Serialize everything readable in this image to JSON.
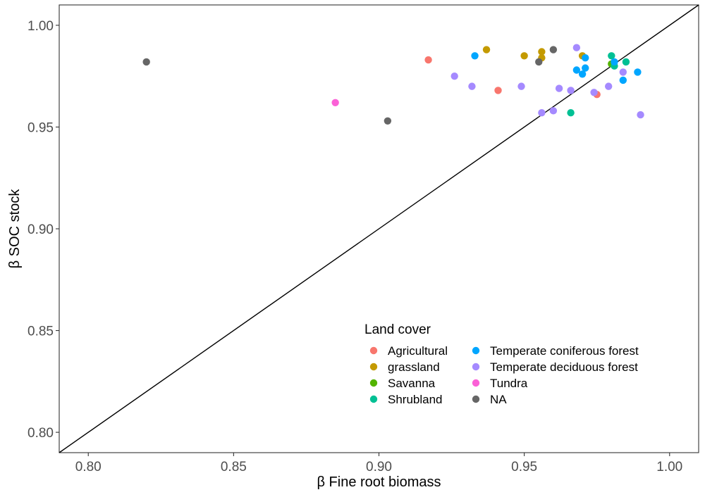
{
  "chart_data": {
    "type": "scatter",
    "xlabel": "β Fine root biomass",
    "ylabel": "β SOC stock",
    "xlim": [
      0.79,
      1.01
    ],
    "ylim": [
      0.79,
      1.01
    ],
    "xticks": [
      "0.80",
      "0.85",
      "0.90",
      "0.95",
      "1.00"
    ],
    "yticks": [
      "0.80",
      "0.85",
      "0.90",
      "0.95",
      "1.00"
    ],
    "xtick_values": [
      0.8,
      0.85,
      0.9,
      0.95,
      1.0
    ],
    "ytick_values": [
      0.8,
      0.85,
      0.9,
      0.95,
      1.0
    ],
    "grid": false,
    "reference_line": "y = x",
    "legend": {
      "title": "Land cover",
      "placement": "bottom-right inside",
      "columns": 2
    },
    "series": [
      {
        "name": "Agricultural",
        "color": "#F8766D",
        "points": [
          [
            0.917,
            0.983
          ],
          [
            0.941,
            0.968
          ],
          [
            0.975,
            0.966
          ]
        ]
      },
      {
        "name": "grassland",
        "color": "#C49A00",
        "points": [
          [
            0.937,
            0.988
          ],
          [
            0.95,
            0.985
          ],
          [
            0.956,
            0.984
          ],
          [
            0.956,
            0.987
          ],
          [
            0.97,
            0.985
          ]
        ]
      },
      {
        "name": "Savanna",
        "color": "#53B400",
        "points": [
          [
            0.98,
            0.981
          ]
        ]
      },
      {
        "name": "Shrubland",
        "color": "#00C094",
        "points": [
          [
            0.966,
            0.957
          ],
          [
            0.98,
            0.985
          ],
          [
            0.985,
            0.982
          ],
          [
            0.981,
            0.98
          ]
        ]
      },
      {
        "name": "Temperate coniferous forest",
        "color": "#00A6FF",
        "points": [
          [
            0.933,
            0.985
          ],
          [
            0.968,
            0.978
          ],
          [
            0.97,
            0.976
          ],
          [
            0.971,
            0.979
          ],
          [
            0.971,
            0.984
          ],
          [
            0.981,
            0.982
          ],
          [
            0.984,
            0.973
          ],
          [
            0.989,
            0.977
          ]
        ]
      },
      {
        "name": "Temperate deciduous forest",
        "color": "#A58AFF",
        "points": [
          [
            0.926,
            0.975
          ],
          [
            0.932,
            0.97
          ],
          [
            0.949,
            0.97
          ],
          [
            0.956,
            0.957
          ],
          [
            0.96,
            0.958
          ],
          [
            0.962,
            0.969
          ],
          [
            0.966,
            0.968
          ],
          [
            0.968,
            0.989
          ],
          [
            0.974,
            0.967
          ],
          [
            0.979,
            0.97
          ],
          [
            0.984,
            0.977
          ],
          [
            0.99,
            0.956
          ]
        ]
      },
      {
        "name": "Tundra",
        "color": "#FB61D7",
        "points": [
          [
            0.885,
            0.962
          ]
        ]
      },
      {
        "name": "NA",
        "color": "#666666",
        "points": [
          [
            0.82,
            0.982
          ],
          [
            0.903,
            0.953
          ],
          [
            0.955,
            0.982
          ],
          [
            0.96,
            0.988
          ]
        ]
      }
    ]
  }
}
